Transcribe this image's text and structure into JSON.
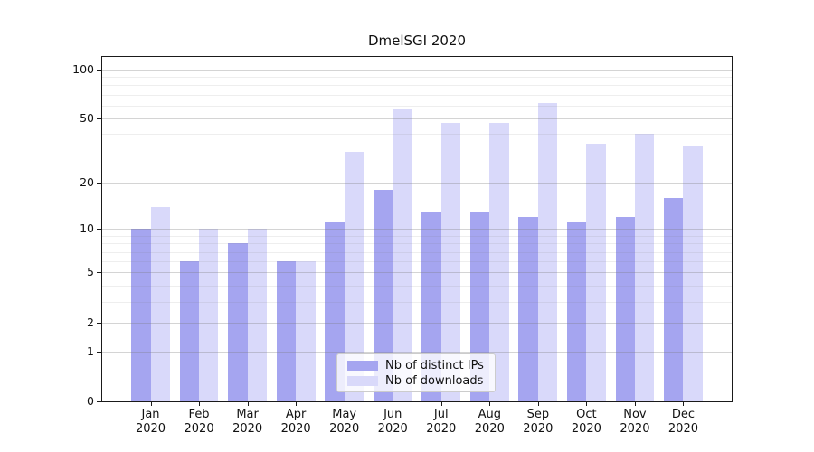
{
  "title": "DmelSGI 2020",
  "colors": {
    "ips_bar": "#a5a5f0",
    "downloads_bar": "#d9d9fa",
    "axis": "#1a1a1a",
    "grid_major": "#d6d6d6",
    "grid_minor": "#eeeeee",
    "legend_border": "#cccccc"
  },
  "legend": {
    "items": [
      {
        "label": "Nb of distinct IPs"
      },
      {
        "label": "Nb of downloads"
      }
    ],
    "position": "lower center"
  },
  "chart_data": {
    "type": "bar",
    "title": "DmelSGI 2020",
    "categories": [
      "Jan 2020",
      "Feb 2020",
      "Mar 2020",
      "Apr 2020",
      "May 2020",
      "Jun 2020",
      "Jul 2020",
      "Aug 2020",
      "Sep 2020",
      "Oct 2020",
      "Nov 2020",
      "Dec 2020"
    ],
    "series": [
      {
        "name": "Nb of distinct IPs",
        "color": "#a5a5f0",
        "values": [
          10,
          6,
          8,
          6,
          11,
          18,
          13,
          13,
          12,
          11,
          12,
          16
        ]
      },
      {
        "name": "Nb of downloads",
        "color": "#d9d9fa",
        "values": [
          14,
          10,
          10,
          6,
          31,
          57,
          47,
          47,
          62,
          35,
          40,
          34
        ]
      }
    ],
    "xlabel": "",
    "ylabel": "",
    "yscale": "log1p",
    "ylim": [
      0,
      119
    ],
    "yticks": [
      0,
      1,
      2,
      5,
      10,
      20,
      50,
      100
    ],
    "minor_gridlines": [
      3,
      4,
      6,
      7,
      8,
      9,
      30,
      40,
      60,
      70,
      80,
      90
    ],
    "grid": "horizontal",
    "legend_position": "lower center"
  }
}
